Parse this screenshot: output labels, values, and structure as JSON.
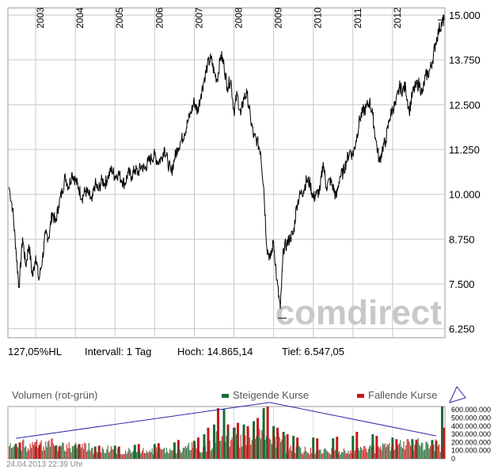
{
  "stats": {
    "hl": "127,05%HL",
    "interval": "Intervall: 1 Tag",
    "high": "Hoch:  14.865,14",
    "low": "Tief:  6.547,05"
  },
  "watermark": "comdirect",
  "volume": {
    "title": "Volumen (rot-grün)",
    "legend_up": "Steigende Kurse",
    "legend_down": "Fallende Kurse",
    "color_up": "#1a6a35",
    "color_down": "#c41a1a"
  },
  "footer": "24.04.2013 22:39 Uhr",
  "chart_data": [
    {
      "type": "line",
      "title": "",
      "xlabel": "",
      "ylabel": "",
      "x_ticks": [
        "2003",
        "2004",
        "2005",
        "2006",
        "2007",
        "2008",
        "2009",
        "2010",
        "2011",
        "2012"
      ],
      "y_ticks": [
        "15.000",
        "13.750",
        "12.500",
        "11.250",
        "10.000",
        "8.750",
        "7.500",
        "6.250"
      ],
      "ylim": [
        6000,
        15200
      ],
      "xlim": [
        2002.3,
        2013.32
      ],
      "y_axis_position": "right",
      "grid": true,
      "series": [
        {
          "x": [
            2002.33,
            2002.42,
            2002.5,
            2002.58,
            2002.67,
            2002.75,
            2002.83,
            2002.92,
            2003.0,
            2003.08,
            2003.17,
            2003.25,
            2003.33,
            2003.42,
            2003.5,
            2003.58,
            2003.67,
            2003.75,
            2003.83,
            2003.92,
            2004.0,
            2004.08,
            2004.17,
            2004.25,
            2004.33,
            2004.42,
            2004.5,
            2004.58,
            2004.67,
            2004.75,
            2004.83,
            2004.92,
            2005.0,
            2005.08,
            2005.17,
            2005.25,
            2005.33,
            2005.42,
            2005.5,
            2005.58,
            2005.67,
            2005.75,
            2005.83,
            2005.92,
            2006.0,
            2006.08,
            2006.17,
            2006.25,
            2006.33,
            2006.42,
            2006.5,
            2006.58,
            2006.67,
            2006.75,
            2006.83,
            2006.92,
            2007.0,
            2007.08,
            2007.17,
            2007.25,
            2007.33,
            2007.42,
            2007.5,
            2007.58,
            2007.67,
            2007.75,
            2007.83,
            2007.92,
            2008.0,
            2008.08,
            2008.17,
            2008.25,
            2008.33,
            2008.42,
            2008.5,
            2008.58,
            2008.67,
            2008.75,
            2008.83,
            2008.92,
            2009.0,
            2009.08,
            2009.17,
            2009.25,
            2009.33,
            2009.42,
            2009.5,
            2009.58,
            2009.67,
            2009.75,
            2009.83,
            2009.92,
            2010.0,
            2010.08,
            2010.17,
            2010.25,
            2010.33,
            2010.42,
            2010.5,
            2010.58,
            2010.67,
            2010.75,
            2010.83,
            2010.92,
            2011.0,
            2011.08,
            2011.17,
            2011.25,
            2011.33,
            2011.42,
            2011.5,
            2011.58,
            2011.67,
            2011.75,
            2011.83,
            2011.92,
            2012.0,
            2012.08,
            2012.17,
            2012.25,
            2012.33,
            2012.42,
            2012.5,
            2012.58,
            2012.67,
            2012.75,
            2012.83,
            2012.92,
            2013.0,
            2013.08,
            2013.17,
            2013.25,
            2013.3
          ],
          "values": [
            10200,
            9600,
            8500,
            7400,
            8800,
            8000,
            8600,
            7700,
            8300,
            7600,
            8200,
            8900,
            8800,
            9500,
            9200,
            9700,
            10100,
            10500,
            10200,
            10600,
            10400,
            10200,
            9900,
            10100,
            10000,
            9800,
            10300,
            10100,
            10400,
            10300,
            10500,
            10700,
            10500,
            10600,
            10400,
            10300,
            10600,
            10500,
            10700,
            10600,
            10800,
            10700,
            10900,
            11000,
            11100,
            10900,
            11000,
            11300,
            10900,
            10600,
            11000,
            11300,
            11500,
            11700,
            12000,
            12300,
            12600,
            12300,
            12800,
            13200,
            13600,
            13800,
            13400,
            13200,
            13900,
            13600,
            13000,
            13200,
            12300,
            12800,
            12200,
            12700,
            12800,
            12100,
            11600,
            11500,
            11200,
            10200,
            8500,
            8200,
            8700,
            7600,
            6800,
            8500,
            8600,
            8800,
            8900,
            9700,
            10000,
            10100,
            10400,
            10300,
            9900,
            10000,
            10100,
            10900,
            10200,
            10400,
            10200,
            9900,
            10500,
            10600,
            10900,
            11200,
            11100,
            11500,
            12100,
            12300,
            12400,
            12600,
            12200,
            11500,
            10900,
            11300,
            11500,
            12100,
            12400,
            12500,
            13000,
            12900,
            13000,
            12300,
            12800,
            13000,
            13100,
            12800,
            13300,
            13400,
            13700,
            14200,
            14600,
            14800,
            14865
          ]
        }
      ]
    },
    {
      "type": "bar",
      "title": "Volumen (rot-grün)",
      "y_ticks": [
        "600.000.000",
        "500.000.000",
        "400.000.000",
        "300.000.000",
        "200.000.000",
        "100.000.000",
        "0"
      ],
      "ylim": [
        0,
        640000000
      ],
      "series": [
        {
          "name": "Steigende Kurse",
          "x": [
            2002.5,
            2003.0,
            2003.5,
            2004.0,
            2004.5,
            2005.0,
            2005.5,
            2006.0,
            2006.5,
            2007.0,
            2007.25,
            2007.5,
            2007.75,
            2008.0,
            2008.25,
            2008.5,
            2008.75,
            2009.0,
            2009.25,
            2009.5,
            2010.0,
            2010.5,
            2011.0,
            2011.5,
            2012.0,
            2012.5,
            2013.0,
            2013.25
          ],
          "values": [
            180000000,
            150000000,
            160000000,
            170000000,
            150000000,
            160000000,
            170000000,
            180000000,
            200000000,
            220000000,
            300000000,
            420000000,
            610000000,
            380000000,
            420000000,
            460000000,
            620000000,
            400000000,
            330000000,
            280000000,
            260000000,
            250000000,
            280000000,
            300000000,
            260000000,
            240000000,
            230000000,
            640000000
          ]
        },
        {
          "name": "Fallende Kurse",
          "x": [
            2002.6,
            2003.1,
            2003.6,
            2004.1,
            2004.6,
            2005.1,
            2005.6,
            2006.1,
            2006.6,
            2007.1,
            2007.35,
            2007.6,
            2007.85,
            2008.1,
            2008.35,
            2008.6,
            2008.85,
            2009.1,
            2009.35,
            2009.6,
            2010.1,
            2010.6,
            2011.1,
            2011.6,
            2012.1,
            2012.6,
            2013.1,
            2013.3
          ],
          "values": [
            200000000,
            170000000,
            150000000,
            180000000,
            160000000,
            150000000,
            180000000,
            190000000,
            230000000,
            260000000,
            380000000,
            620000000,
            420000000,
            440000000,
            400000000,
            500000000,
            640000000,
            380000000,
            300000000,
            260000000,
            250000000,
            270000000,
            330000000,
            280000000,
            240000000,
            230000000,
            220000000,
            380000000
          ]
        }
      ],
      "trend_lines": [
        {
          "x": [
            2002.5,
            2008.9
          ],
          "values": [
            250000000,
            690000000
          ]
        },
        {
          "x": [
            2008.9,
            2013.1
          ],
          "values": [
            690000000,
            280000000
          ]
        }
      ]
    }
  ]
}
